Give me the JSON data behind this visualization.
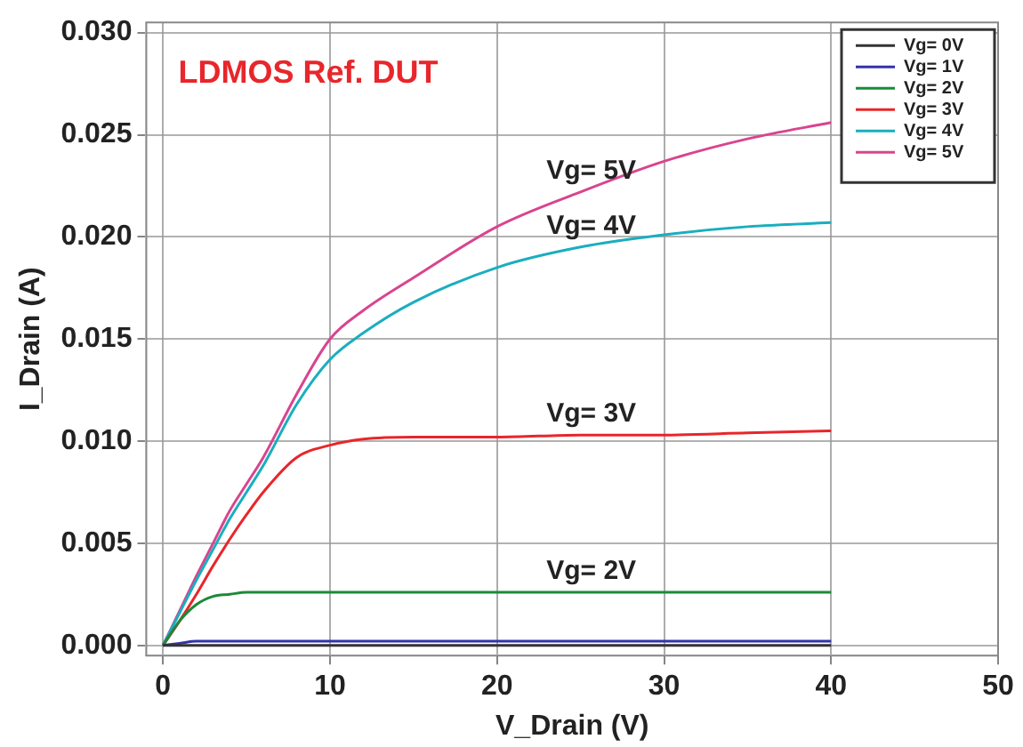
{
  "chart_data": {
    "type": "line",
    "title": "LDMOS Ref. DUT",
    "xlabel": "V_Drain (V)",
    "ylabel": "I_Drain (A)",
    "x": [
      0,
      1,
      2,
      3,
      4,
      5,
      6,
      8,
      10,
      12,
      15,
      20,
      25,
      30,
      35,
      40
    ],
    "series": [
      {
        "name": "Vg= 0V",
        "color": "#333333",
        "values": [
          0,
          0,
          0,
          0,
          0,
          0,
          0,
          0,
          0,
          0,
          0,
          0,
          0,
          0,
          0,
          0
        ]
      },
      {
        "name": "Vg= 1V",
        "color": "#3333aa",
        "values": [
          0,
          0.0001,
          0.0002,
          0.0002,
          0.0002,
          0.0002,
          0.0002,
          0.0002,
          0.0002,
          0.0002,
          0.0002,
          0.0002,
          0.0002,
          0.0002,
          0.0002,
          0.0002
        ]
      },
      {
        "name": "Vg= 2V",
        "color": "#1a8a3a",
        "values": [
          0,
          0.0012,
          0.002,
          0.0024,
          0.0025,
          0.0026,
          0.0026,
          0.0026,
          0.0026,
          0.0026,
          0.0026,
          0.0026,
          0.0026,
          0.0026,
          0.0026,
          0.0026
        ]
      },
      {
        "name": "Vg= 3V",
        "color": "#e8262b",
        "values": [
          0,
          0.0012,
          0.0025,
          0.0039,
          0.0052,
          0.0064,
          0.0075,
          0.0092,
          0.0098,
          0.0101,
          0.0102,
          0.0102,
          0.0103,
          0.0103,
          0.0104,
          0.0105
        ]
      },
      {
        "name": "Vg= 4V",
        "color": "#1aaebf",
        "values": [
          0,
          0.0016,
          0.0032,
          0.0047,
          0.0062,
          0.0075,
          0.0088,
          0.0118,
          0.014,
          0.0153,
          0.0168,
          0.0185,
          0.0195,
          0.0201,
          0.0205,
          0.0207
        ]
      },
      {
        "name": "Vg= 5V",
        "color": "#d9448f",
        "values": [
          0,
          0.0017,
          0.0034,
          0.005,
          0.0066,
          0.0079,
          0.0092,
          0.0123,
          0.015,
          0.0164,
          0.018,
          0.0205,
          0.0222,
          0.0237,
          0.0248,
          0.0256
        ]
      }
    ],
    "annotations": [
      "Vg= 5V",
      "Vg= 4V",
      "Vg= 3V",
      "Vg= 2V"
    ],
    "xlim": [
      -1,
      50
    ],
    "xticks": [
      0,
      10,
      20,
      30,
      40,
      50
    ],
    "ylim": [
      -0.0005,
      0.0305
    ],
    "yticks": [
      {
        "value": 0,
        "label": "0.000"
      },
      0.005,
      {
        "value": 0.01,
        "label": "0.010"
      },
      0.015,
      {
        "value": 0.02,
        "label": "0.020"
      },
      0.025,
      {
        "value": 0.03,
        "label": "0.030"
      }
    ],
    "grid": true,
    "legend": "top right",
    "marker": "none",
    "line_style": "solid"
  }
}
